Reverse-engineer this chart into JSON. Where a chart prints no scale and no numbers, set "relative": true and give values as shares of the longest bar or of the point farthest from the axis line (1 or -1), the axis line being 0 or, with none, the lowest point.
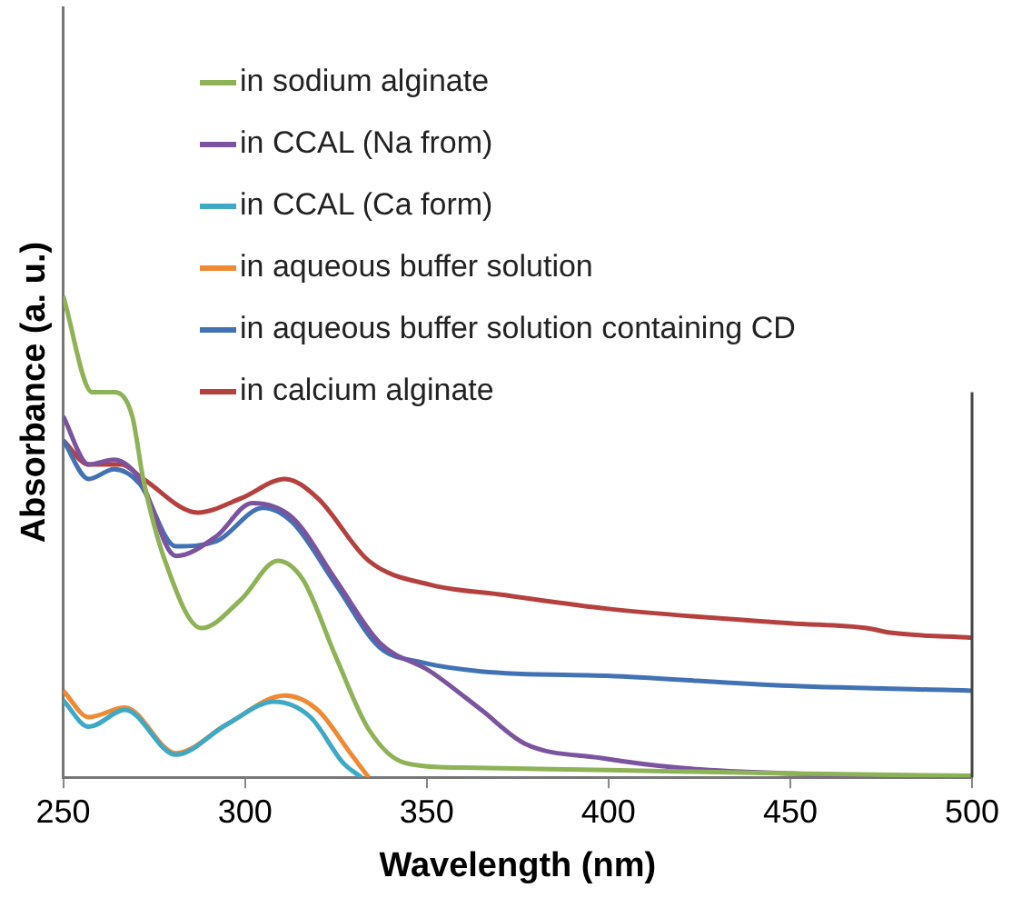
{
  "chart_data": {
    "type": "line",
    "xlabel": "Wavelength (nm)",
    "ylabel": "Absorbance (a. u.)",
    "relative": true,
    "xlim": [
      250,
      500
    ],
    "xticks": [
      250,
      300,
      350,
      400,
      450,
      500
    ],
    "grid": false,
    "legend": "top",
    "marker": "none",
    "line_style": "solid",
    "series": [
      {
        "name": "in sodium alginate",
        "color": "#8db356",
        "x": [
          250,
          258,
          264,
          269,
          272,
          278,
          288,
          299,
          309,
          316,
          325,
          334,
          344,
          360,
          400,
          450,
          500
        ],
        "values": [
          1.0,
          0.8,
          0.8,
          0.75,
          0.62,
          0.45,
          0.31,
          0.37,
          0.45,
          0.41,
          0.25,
          0.1,
          0.03,
          0.02,
          0.015,
          0.008,
          0.003
        ]
      },
      {
        "name": "in CCAL (Na from)",
        "color": "#7b539f",
        "x": [
          250,
          257,
          264,
          271,
          281,
          292,
          302,
          313,
          325,
          337,
          351,
          365,
          377,
          398,
          419,
          450,
          500
        ],
        "values": [
          0.75,
          0.65,
          0.66,
          0.62,
          0.46,
          0.5,
          0.57,
          0.54,
          0.41,
          0.28,
          0.22,
          0.14,
          0.07,
          0.04,
          0.02,
          0.008,
          0.0
        ]
      },
      {
        "name": "in CCAL (Ca form)",
        "color": "#3da9c4",
        "x": [
          250,
          257,
          267,
          281,
          295,
          308,
          318,
          327,
          332
        ],
        "values": [
          0.16,
          0.105,
          0.14,
          0.047,
          0.11,
          0.157,
          0.125,
          0.03,
          0.0
        ]
      },
      {
        "name": "in aqueous buffer solution",
        "color": "#ef8a34",
        "x": [
          250,
          257,
          267,
          281,
          295,
          311,
          320,
          329,
          334
        ],
        "values": [
          0.18,
          0.125,
          0.145,
          0.05,
          0.11,
          0.17,
          0.14,
          0.05,
          0.0
        ]
      },
      {
        "name": "in aqueous buffer solution containing CD",
        "color": "#4272b4",
        "x": [
          250,
          257,
          264,
          271,
          281,
          292,
          305,
          313,
          325,
          337,
          348,
          365,
          402,
          450,
          500
        ],
        "values": [
          0.7,
          0.62,
          0.64,
          0.61,
          0.48,
          0.49,
          0.56,
          0.53,
          0.4,
          0.27,
          0.24,
          0.22,
          0.21,
          0.19,
          0.18
        ]
      },
      {
        "name": "in calcium alginate",
        "color": "#b5413e",
        "x": [
          250,
          257,
          266,
          272,
          287,
          299,
          311,
          320,
          334,
          351,
          370,
          400,
          450,
          471,
          478,
          500
        ],
        "values": [
          0.7,
          0.65,
          0.65,
          0.62,
          0.55,
          0.58,
          0.62,
          0.58,
          0.45,
          0.4,
          0.38,
          0.35,
          0.32,
          0.31,
          0.3,
          0.29
        ]
      }
    ]
  }
}
